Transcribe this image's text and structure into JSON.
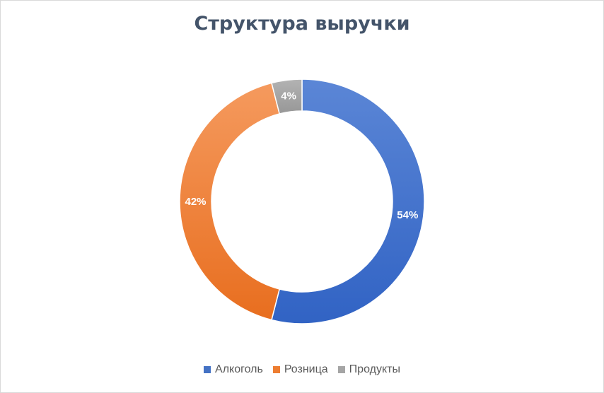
{
  "chart_data": {
    "type": "pie",
    "title": "Структура выручки",
    "categories": [
      "Алкоголь",
      "Розница",
      "Продукты"
    ],
    "values": [
      54,
      42,
      4
    ],
    "value_labels": [
      "54%",
      "42%",
      "4%"
    ],
    "colors": [
      "#4472c4",
      "#ed7d31",
      "#a5a5a5"
    ],
    "donut": true,
    "legend_position": "bottom"
  }
}
